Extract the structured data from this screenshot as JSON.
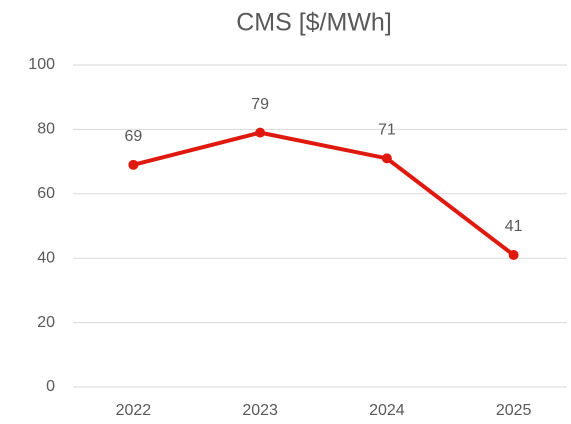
{
  "chart_data": {
    "type": "line",
    "title": "CMS [$/MWh]",
    "categories": [
      "2022",
      "2023",
      "2024",
      "2025"
    ],
    "series": [
      {
        "name": "CMS",
        "color": "#e0190f",
        "values": [
          69,
          79,
          71,
          41
        ]
      }
    ],
    "ylim": [
      0,
      100
    ],
    "yticks": [
      0,
      20,
      40,
      60,
      80,
      100
    ],
    "grid": true
  }
}
